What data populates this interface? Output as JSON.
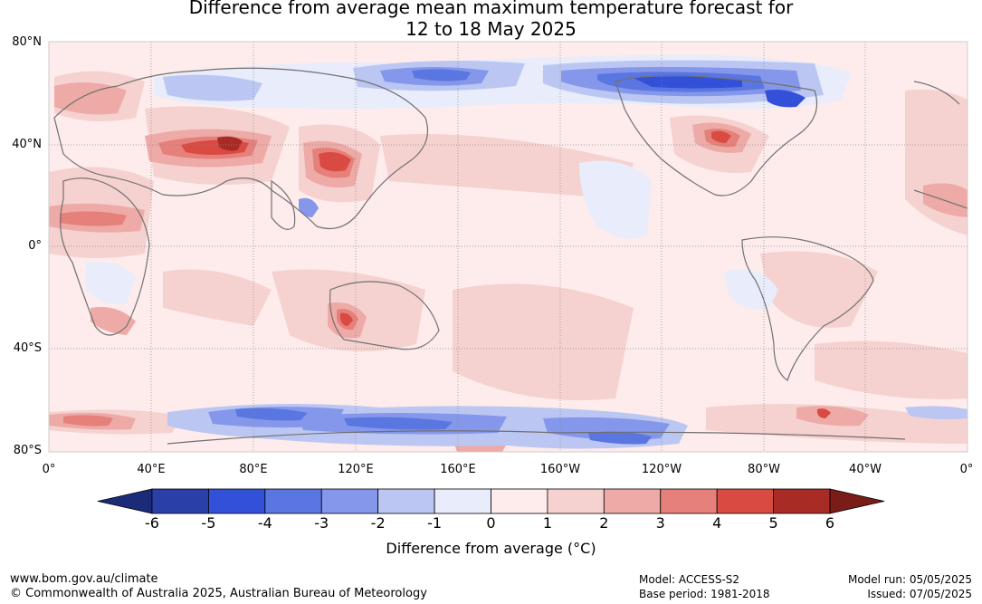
{
  "title": {
    "line1": "Difference from average mean maximum temperature forecast for",
    "line2": "12 to 18 May 2025"
  },
  "map": {
    "lat_labels": [
      "80°N",
      "40°N",
      "0°",
      "40°S",
      "80°S"
    ],
    "lon_labels": [
      "0°",
      "40°E",
      "80°E",
      "120°E",
      "160°E",
      "160°W",
      "120°W",
      "80°W",
      "40°W",
      "0°"
    ],
    "region_icon": "world-map-anomaly-field"
  },
  "colorbar": {
    "ticks": [
      "-6",
      "-5",
      "-4",
      "-3",
      "-2",
      "-1",
      "0",
      "1",
      "2",
      "3",
      "4",
      "5",
      "6"
    ],
    "label": "Difference from average (°C)",
    "colors": {
      "below_min": "#1c2a7a",
      "bins": [
        "#2b3fa8",
        "#3350d8",
        "#5a76e0",
        "#8497ea",
        "#bcc6f2",
        "#e8ecfb",
        "#fdeceb",
        "#f5d2d0",
        "#eeaaa6",
        "#e6807a",
        "#d94b42",
        "#a82b26"
      ],
      "above_max": "#7a1c18"
    }
  },
  "footer": {
    "website": "www.bom.gov.au/climate",
    "copyright": "© Commonwealth of Australia 2025, Australian Bureau of Meteorology",
    "model": "Model: ACCESS-S2",
    "base_period": "Base period: 1981-2018",
    "model_run": "Model run: 05/05/2025",
    "issued": "Issued: 07/05/2025"
  }
}
